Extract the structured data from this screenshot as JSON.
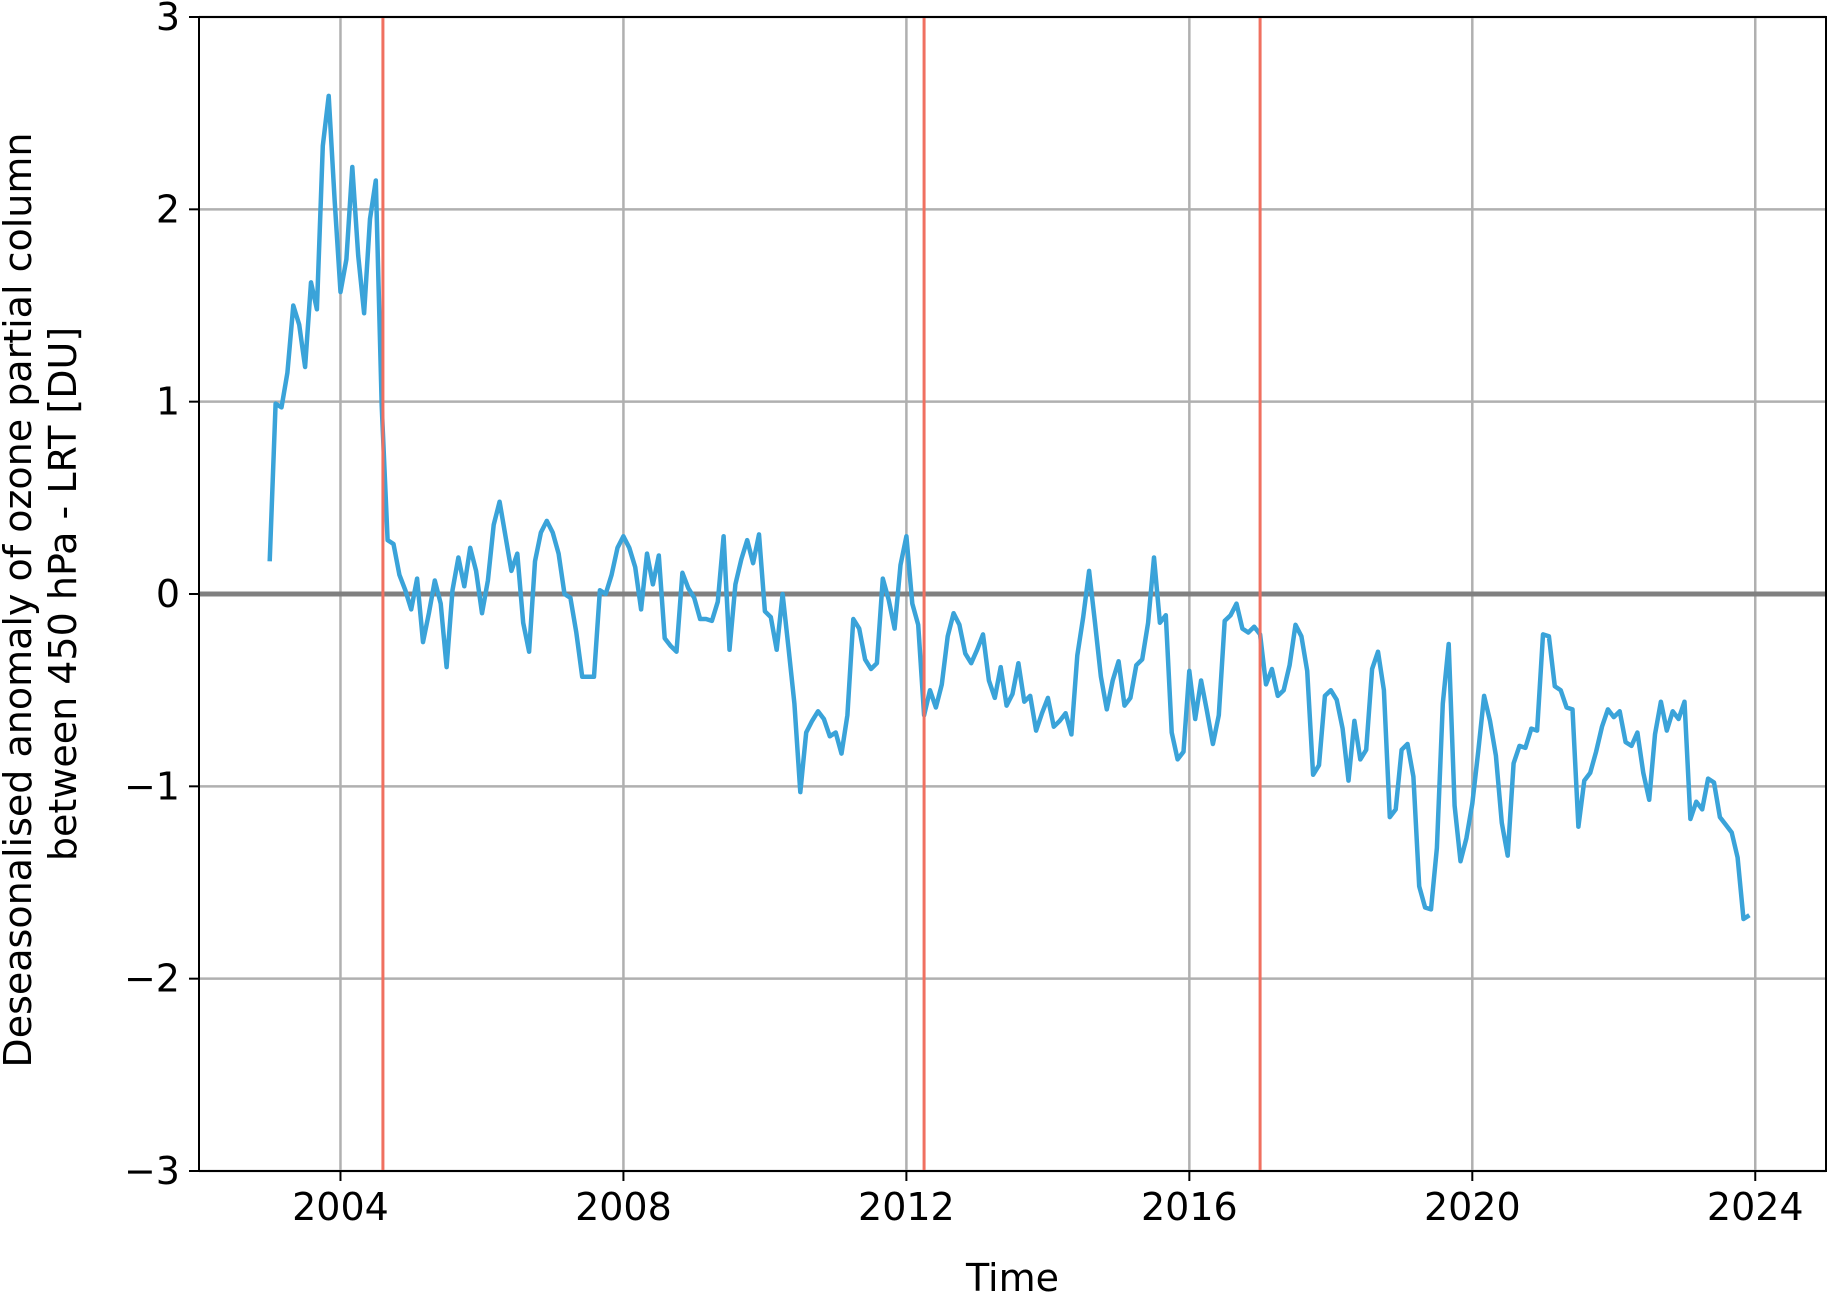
{
  "chart_data": {
    "type": "line",
    "title": "",
    "xlabel": "Time",
    "ylabel": [
      "Deseasonalised anomaly of ozone partial column",
      "between 450 hPa - LRT  [DU]"
    ],
    "xlim": [
      2002.0,
      2025.0
    ],
    "ylim": [
      -3,
      3
    ],
    "x_ticks": [
      2004,
      2008,
      2012,
      2016,
      2020,
      2024
    ],
    "x_tick_labels": [
      "2004",
      "2008",
      "2012",
      "2016",
      "2020",
      "2024"
    ],
    "y_ticks": [
      -3,
      -2,
      -1,
      0,
      1,
      2,
      3
    ],
    "y_tick_labels": [
      "−3",
      "−2",
      "−1",
      "0",
      "1",
      "2",
      "3"
    ],
    "grid": true,
    "reference_line": {
      "y": 0,
      "color": "#808080"
    },
    "vertical_lines": {
      "x": [
        2004.6,
        2012.25,
        2017.0
      ],
      "color": "#f07060"
    },
    "series_color": "#3aa3d9",
    "series": [
      {
        "x_start": 2003.0,
        "x_step": 0.0833333,
        "values": [
          0.17,
          0.99,
          0.97,
          1.15,
          1.5,
          1.4,
          1.18,
          1.62,
          1.48,
          2.33,
          2.59,
          2.05,
          1.57,
          1.74,
          2.22,
          1.76,
          1.46,
          1.95,
          2.15,
          0.98,
          0.28,
          0.26,
          0.1,
          0.02,
          -0.08,
          0.08,
          -0.25,
          -0.1,
          0.07,
          -0.05,
          -0.38,
          0.02,
          0.19,
          0.04,
          0.24,
          0.12,
          -0.1,
          0.07,
          0.36,
          0.48,
          0.3,
          0.12,
          0.21,
          -0.15,
          -0.3,
          0.17,
          0.32,
          0.38,
          0.32,
          0.21,
          0.0,
          -0.02,
          -0.2,
          -0.43,
          -0.43,
          -0.43,
          0.02,
          0.0,
          0.1,
          0.24,
          0.3,
          0.24,
          0.14,
          -0.08,
          0.21,
          0.05,
          0.2,
          -0.23,
          -0.27,
          -0.3,
          0.11,
          0.03,
          -0.02,
          -0.13,
          -0.13,
          -0.14,
          -0.04,
          0.3,
          -0.29,
          0.05,
          0.18,
          0.28,
          0.16,
          0.31,
          -0.09,
          -0.12,
          -0.29,
          0.0,
          -0.28,
          -0.57,
          -1.03,
          -0.72,
          -0.66,
          -0.61,
          -0.65,
          -0.74,
          -0.72,
          -0.83,
          -0.63,
          -0.13,
          -0.18,
          -0.34,
          -0.39,
          -0.36,
          0.08,
          -0.03,
          -0.18,
          0.15,
          0.3,
          -0.05,
          -0.16,
          -0.63,
          -0.5,
          -0.59,
          -0.47,
          -0.22,
          -0.1,
          -0.16,
          -0.31,
          -0.36,
          -0.29,
          -0.21,
          -0.45,
          -0.54,
          -0.38,
          -0.58,
          -0.52,
          -0.36,
          -0.56,
          -0.53,
          -0.71,
          -0.62,
          -0.54,
          -0.69,
          -0.66,
          -0.62,
          -0.73,
          -0.32,
          -0.12,
          0.12,
          -0.15,
          -0.43,
          -0.6,
          -0.45,
          -0.35,
          -0.58,
          -0.54,
          -0.37,
          -0.34,
          -0.15,
          0.19,
          -0.15,
          -0.11,
          -0.72,
          -0.86,
          -0.82,
          -0.4,
          -0.65,
          -0.45,
          -0.61,
          -0.78,
          -0.63,
          -0.14,
          -0.11,
          -0.05,
          -0.18,
          -0.2,
          -0.17,
          -0.21,
          -0.47,
          -0.39,
          -0.53,
          -0.5,
          -0.37,
          -0.16,
          -0.22,
          -0.4,
          -0.94,
          -0.89,
          -0.53,
          -0.5,
          -0.55,
          -0.7,
          -0.97,
          -0.66,
          -0.86,
          -0.81,
          -0.39,
          -0.3,
          -0.5,
          -1.16,
          -1.12,
          -0.81,
          -0.78,
          -0.95,
          -1.52,
          -1.63,
          -1.64,
          -1.32,
          -0.57,
          -0.26,
          -1.1,
          -1.39,
          -1.27,
          -1.09,
          -0.82,
          -0.53,
          -0.66,
          -0.84,
          -1.19,
          -1.36,
          -0.88,
          -0.79,
          -0.8,
          -0.7,
          -0.71,
          -0.21,
          -0.22,
          -0.48,
          -0.5,
          -0.59,
          -0.6,
          -1.21,
          -0.97,
          -0.93,
          -0.82,
          -0.69,
          -0.6,
          -0.64,
          -0.61,
          -0.77,
          -0.79,
          -0.72,
          -0.93,
          -1.07,
          -0.73,
          -0.56,
          -0.71,
          -0.61,
          -0.65,
          -0.56,
          -1.17,
          -1.08,
          -1.12,
          -0.96,
          -0.98,
          -1.16,
          -1.2,
          -1.24,
          -1.37,
          -1.69,
          -1.67
        ]
      }
    ]
  }
}
